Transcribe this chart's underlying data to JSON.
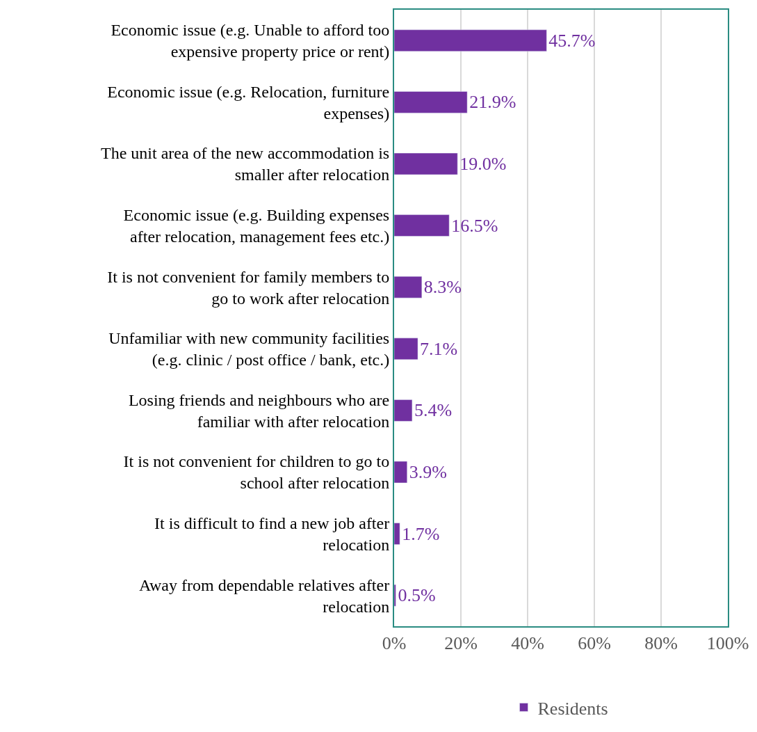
{
  "chart_data": {
    "type": "bar",
    "orientation": "horizontal",
    "categories": [
      "Economic issue (e.g. Unable to afford too expensive property price or rent)",
      "Economic issue (e.g. Relocation, furniture expenses)",
      "The unit area of the new accommodation is smaller after relocation",
      "Economic issue (e.g. Building expenses after relocation, management fees etc.)",
      "It is not convenient for family members to go to work after relocation",
      "Unfamiliar with new community facilities (e.g. clinic / post office / bank, etc.)",
      "Losing friends and neighbours who are familiar with after relocation",
      "It is not convenient for children to go to school after relocation",
      "It is difficult to find a new job after relocation",
      "Away from dependable relatives after relocation"
    ],
    "series": [
      {
        "name": "Residents",
        "color": "#7030a0",
        "values": [
          45.7,
          21.9,
          19.0,
          16.5,
          8.3,
          7.1,
          5.4,
          3.9,
          1.7,
          0.5
        ],
        "value_labels": [
          "45.7%",
          "21.9%",
          "19.0%",
          "16.5%",
          "8.3%",
          "7.1%",
          "5.4%",
          "3.9%",
          "1.7%",
          "0.5%"
        ]
      }
    ],
    "xlim": [
      0,
      100
    ],
    "xticks": [
      {
        "value": 0,
        "label": "0%"
      },
      {
        "value": 20,
        "label": "20%"
      },
      {
        "value": 40,
        "label": "40%"
      },
      {
        "value": 60,
        "label": "60%"
      },
      {
        "value": 80,
        "label": "80%"
      },
      {
        "value": 100,
        "label": "100%"
      }
    ],
    "grid": "x",
    "legend": "bottom"
  }
}
